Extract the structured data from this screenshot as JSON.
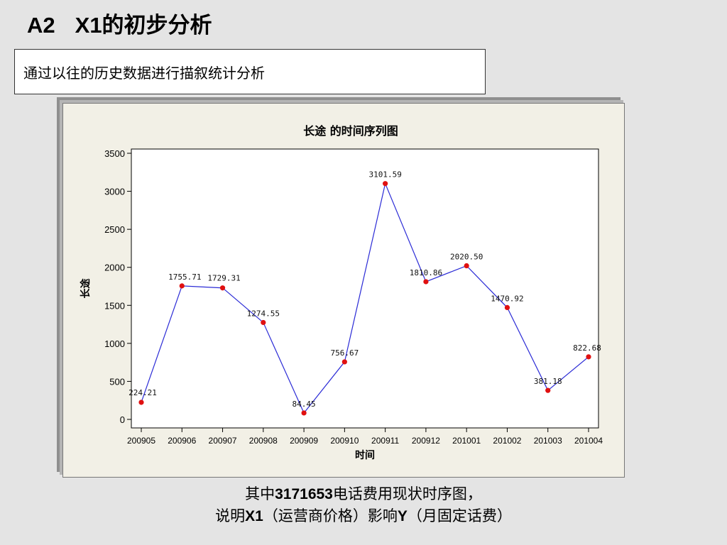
{
  "slide": {
    "title_code": "A2",
    "title_text": "X1的初步分析",
    "subtitle": "通过以往的历史数据进行描叙统计分析",
    "caption_line1_pre": "其中",
    "caption_line1_num": "3171653",
    "caption_line1_post": "电话费用现状时序图，",
    "caption_line2_pre": "说明",
    "caption_line2_x": "X1",
    "caption_line2_mid": "（运营商价格）影响",
    "caption_line2_y": "Y",
    "caption_line2_post": "（月固定话费）"
  },
  "chart_data": {
    "type": "line",
    "title": "长途  的时间序列图",
    "xlabel": "时间",
    "ylabel": "长途",
    "categories": [
      "200905",
      "200906",
      "200907",
      "200908",
      "200909",
      "200910",
      "200911",
      "200912",
      "201001",
      "201002",
      "201003",
      "201004"
    ],
    "values": [
      224.21,
      1755.71,
      1729.31,
      1274.55,
      84.45,
      756.67,
      3101.59,
      1810.86,
      2020.5,
      1470.92,
      381.18,
      822.68
    ],
    "data_labels": [
      "224.21",
      "1755.71",
      "1729.31",
      "1274.55",
      "84.45",
      "756.67",
      "3101.59",
      "1810.86",
      "2020.50",
      "1470.92",
      "381.18",
      "822.68"
    ],
    "ylim": [
      0,
      3500
    ],
    "yticks": [
      0,
      500,
      1000,
      1500,
      2000,
      2500,
      3000,
      3500
    ],
    "grid": false,
    "line_color": "#2b2bd6",
    "marker_color": "#e01010"
  }
}
